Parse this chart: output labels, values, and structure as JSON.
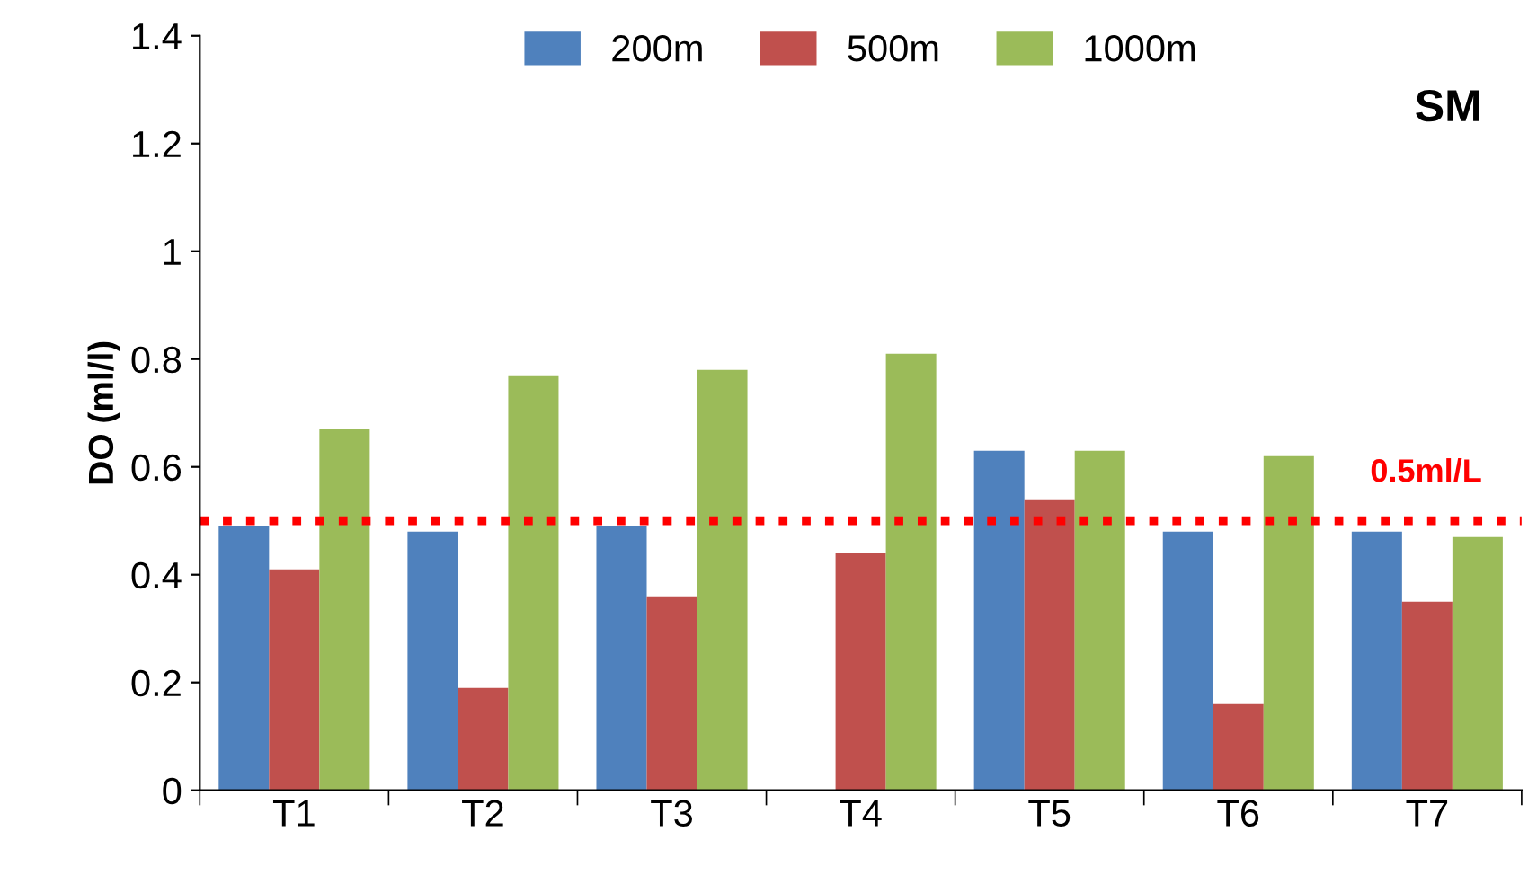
{
  "chart_data": {
    "type": "bar",
    "ylabel": "DO (ml/l)",
    "categories": [
      "T1",
      "T2",
      "T3",
      "T4",
      "T5",
      "T6",
      "T7"
    ],
    "series": [
      {
        "name": "200m",
        "color": "#4f81bd",
        "values": [
          0.49,
          0.48,
          0.49,
          null,
          0.63,
          0.48,
          0.48
        ]
      },
      {
        "name": "500m",
        "color": "#c0504d",
        "values": [
          0.41,
          0.19,
          0.36,
          0.44,
          0.54,
          0.16,
          0.35
        ]
      },
      {
        "name": "1000m",
        "color": "#9bbb59",
        "values": [
          0.67,
          0.77,
          0.78,
          0.81,
          0.63,
          0.62,
          0.47
        ]
      }
    ],
    "ylim": [
      0,
      1.4
    ],
    "yticks": [
      0,
      {
        "value": 0.2,
        "label": "0.2"
      },
      {
        "value": 0.4,
        "label": "0.4"
      },
      {
        "value": 0.6,
        "label": "0.6"
      },
      {
        "value": 0.8,
        "label": "0.8"
      },
      1,
      {
        "value": 1.2,
        "label": "1.2"
      },
      {
        "value": 1.4,
        "label": "1.4"
      }
    ],
    "ref_lines": [
      {
        "axis": "y",
        "value": 0.5,
        "label": "0.5ml/L",
        "color": "#ff0000",
        "line_style": "dotted"
      }
    ],
    "annotations": [
      "SM"
    ],
    "grid": false,
    "legend": "top"
  }
}
